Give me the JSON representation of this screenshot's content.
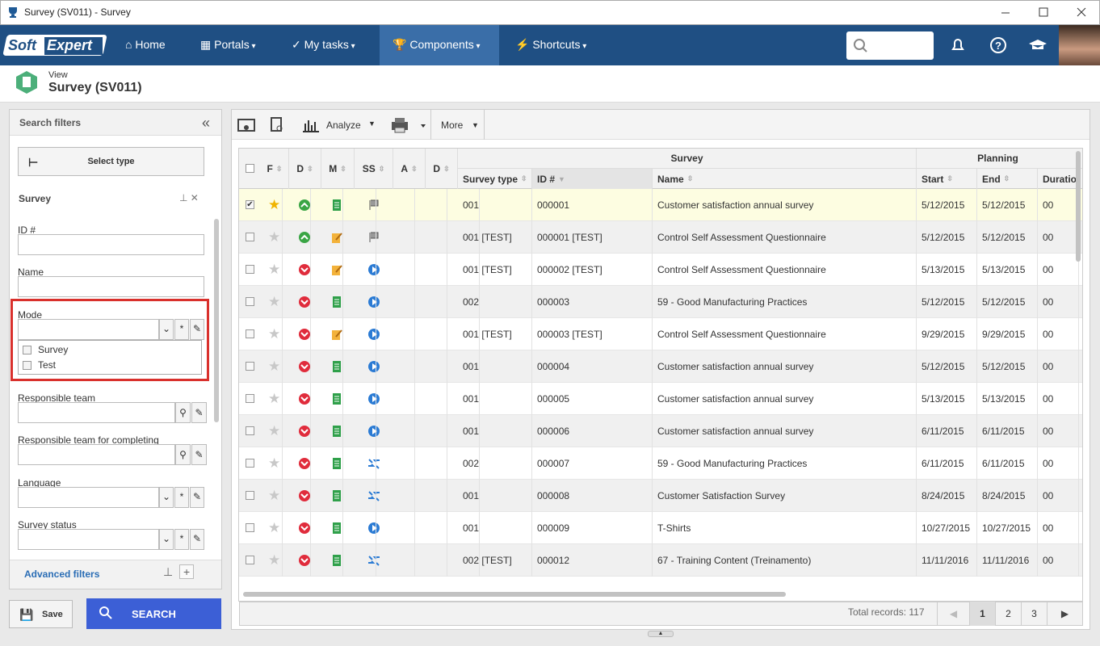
{
  "window": {
    "title": "Survey (SV011) - Survey"
  },
  "nav": {
    "logo": [
      "Soft",
      "Expert"
    ],
    "items": [
      "Home",
      "Portals",
      "My tasks",
      "Components",
      "Shortcuts"
    ]
  },
  "header": {
    "action": "View",
    "title": "Survey (SV011)"
  },
  "filters": {
    "title": "Search filters",
    "select_type": "Select type",
    "section": "Survey",
    "fields": [
      "ID #",
      "Name",
      "Mode",
      "Responsible team",
      "Responsible team for completing",
      "Language",
      "Survey status"
    ],
    "mode_options": [
      "Survey",
      "Test"
    ],
    "advanced": "Advanced filters",
    "save": "Save",
    "search": "SEARCH"
  },
  "toolbar": {
    "analyze": "Analyze",
    "more": "More"
  },
  "table": {
    "groups": [
      "Survey",
      "Planning"
    ],
    "columns": [
      "F",
      "D",
      "M",
      "SS",
      "A",
      "D",
      "Survey type",
      "ID #",
      "Name",
      "Start",
      "End",
      "Duration"
    ],
    "rows": [
      [
        "001",
        "000001",
        "Customer satisfaction annual survey",
        "5/12/2015",
        "5/12/2015",
        "00"
      ],
      [
        "001 [TEST]",
        "000001 [TEST]",
        "Control Self Assessment Questionnaire",
        "5/12/2015",
        "5/12/2015",
        "00"
      ],
      [
        "001 [TEST]",
        "000002 [TEST]",
        "Control Self Assessment Questionnaire",
        "5/13/2015",
        "5/13/2015",
        "00"
      ],
      [
        "002",
        "000003",
        "59 - Good Manufacturing Practices",
        "5/12/2015",
        "5/12/2015",
        "00"
      ],
      [
        "001 [TEST]",
        "000003 [TEST]",
        "Control Self Assessment Questionnaire",
        "9/29/2015",
        "9/29/2015",
        "00"
      ],
      [
        "001",
        "000004",
        "Customer satisfaction annual survey",
        "5/12/2015",
        "5/12/2015",
        "00"
      ],
      [
        "001",
        "000005",
        "Customer satisfaction annual survey",
        "5/13/2015",
        "5/13/2015",
        "00"
      ],
      [
        "001",
        "000006",
        "Customer satisfaction annual survey",
        "6/11/2015",
        "6/11/2015",
        "00"
      ],
      [
        "002",
        "000007",
        "59 - Good Manufacturing Practices",
        "6/11/2015",
        "6/11/2015",
        "00"
      ],
      [
        "001",
        "000008",
        "Customer Satisfaction Survey",
        "8/24/2015",
        "8/24/2015",
        "00"
      ],
      [
        "001",
        "000009",
        "T-Shirts",
        "10/27/2015",
        "10/27/2015",
        "00"
      ],
      [
        "002 [TEST]",
        "000012",
        "67 - Training Content (Treinamento)",
        "11/11/2016",
        "11/11/2016",
        "00"
      ]
    ]
  },
  "footer": {
    "total": "Total records: 117",
    "pages": [
      "1",
      "2",
      "3"
    ]
  }
}
